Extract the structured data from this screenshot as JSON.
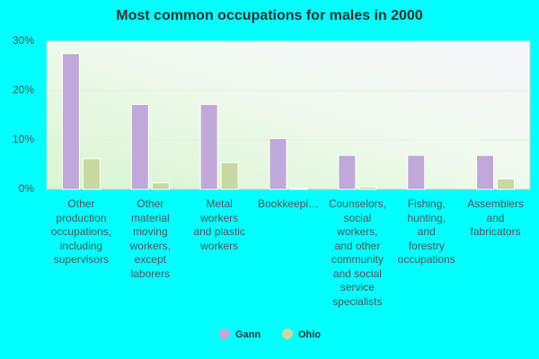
{
  "chart_data": {
    "type": "bar",
    "title": "Most common occupations for males in 2000",
    "categories": [
      "Other\nproduction\noccupations,\nincluding\nsupervisors",
      "Other\nmaterial\nmoving\nworkers,\nexcept\nlaborers",
      "Metal\nworkers\nand plastic\nworkers",
      "Bookkeepi…",
      "Counselors,\nsocial\nworkers,\nand other\ncommunity\nand social\nservice\nspecialists",
      "Fishing,\nhunting,\nand\nforestry\noccupations",
      "Assemblers\nand\nfabricators"
    ],
    "series": [
      {
        "name": "Gann",
        "color": "#c0a8d8",
        "values": [
          27.5,
          17.2,
          17.2,
          10.3,
          6.9,
          6.9,
          6.9
        ]
      },
      {
        "name": "Ohio",
        "color": "#c8d8a0",
        "values": [
          6.2,
          1.3,
          5.4,
          0.2,
          0.5,
          0,
          2.1
        ]
      }
    ],
    "ylim": [
      0,
      30
    ],
    "yticks": [
      {
        "value": 0,
        "label": "0%"
      },
      {
        "value": 10,
        "label": "10%"
      },
      {
        "value": 20,
        "label": "20%"
      },
      {
        "value": 30,
        "label": "30%"
      }
    ],
    "grid": true
  }
}
